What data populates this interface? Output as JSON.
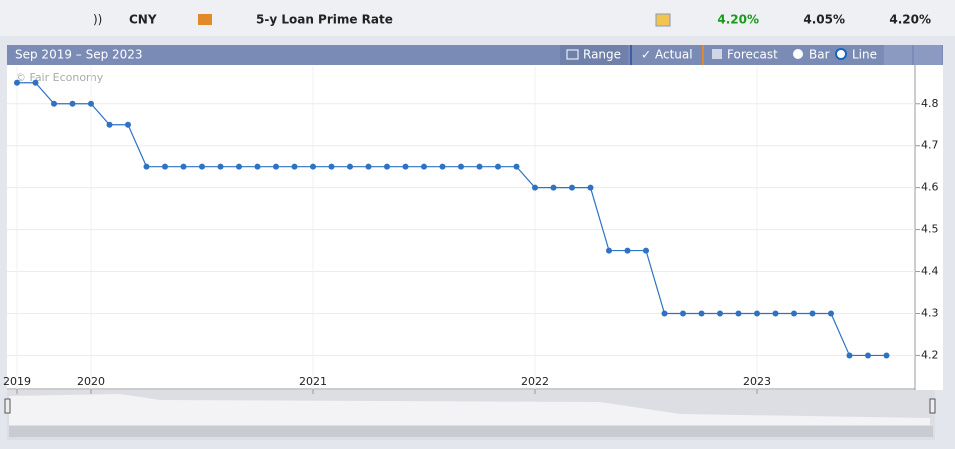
{
  "header": {
    "currency": "CNY",
    "event": "5-y Loan Prime Rate",
    "actual": "4.20%",
    "forecast": "4.05%",
    "previous": "4.20%"
  },
  "toolbar": {
    "range_label": "Sep 2019 – Sep 2023",
    "range": "Range",
    "actual": "Actual",
    "forecast": "Forecast",
    "bar": "Bar",
    "line": "Line"
  },
  "chart_data": {
    "type": "line",
    "source": "© Fair Economy",
    "color": "#2f72c4",
    "x": [
      "2019-09",
      "2019-10",
      "2019-11",
      "2019-12",
      "2020-01",
      "2020-02",
      "2020-03",
      "2020-04",
      "2020-05",
      "2020-06",
      "2020-07",
      "2020-08",
      "2020-09",
      "2020-10",
      "2020-11",
      "2020-12",
      "2021-01",
      "2021-02",
      "2021-03",
      "2021-04",
      "2021-05",
      "2021-06",
      "2021-07",
      "2021-08",
      "2021-09",
      "2021-10",
      "2021-11",
      "2021-12",
      "2022-01",
      "2022-02",
      "2022-03",
      "2022-04",
      "2022-05",
      "2022-06",
      "2022-07",
      "2022-08",
      "2022-09",
      "2022-10",
      "2022-11",
      "2022-12",
      "2023-01",
      "2023-02",
      "2023-03",
      "2023-04",
      "2023-05",
      "2023-06",
      "2023-07",
      "2023-08"
    ],
    "values": [
      4.85,
      4.85,
      4.8,
      4.8,
      4.8,
      4.75,
      4.75,
      4.65,
      4.65,
      4.65,
      4.65,
      4.65,
      4.65,
      4.65,
      4.65,
      4.65,
      4.65,
      4.65,
      4.65,
      4.65,
      4.65,
      4.65,
      4.65,
      4.65,
      4.65,
      4.65,
      4.65,
      4.65,
      4.6,
      4.6,
      4.6,
      4.6,
      4.45,
      4.45,
      4.45,
      4.3,
      4.3,
      4.3,
      4.3,
      4.3,
      4.3,
      4.3,
      4.3,
      4.3,
      4.3,
      4.2,
      4.2,
      4.2
    ],
    "xlim": [
      "2019-09",
      "2023-09"
    ],
    "xticks": [
      2019,
      2020,
      2021,
      2022,
      2023
    ],
    "ylim": [
      4.12,
      4.89
    ],
    "yticks": [
      4.2,
      4.3,
      4.4,
      4.5,
      4.6,
      4.7,
      4.8
    ],
    "grid": true
  }
}
